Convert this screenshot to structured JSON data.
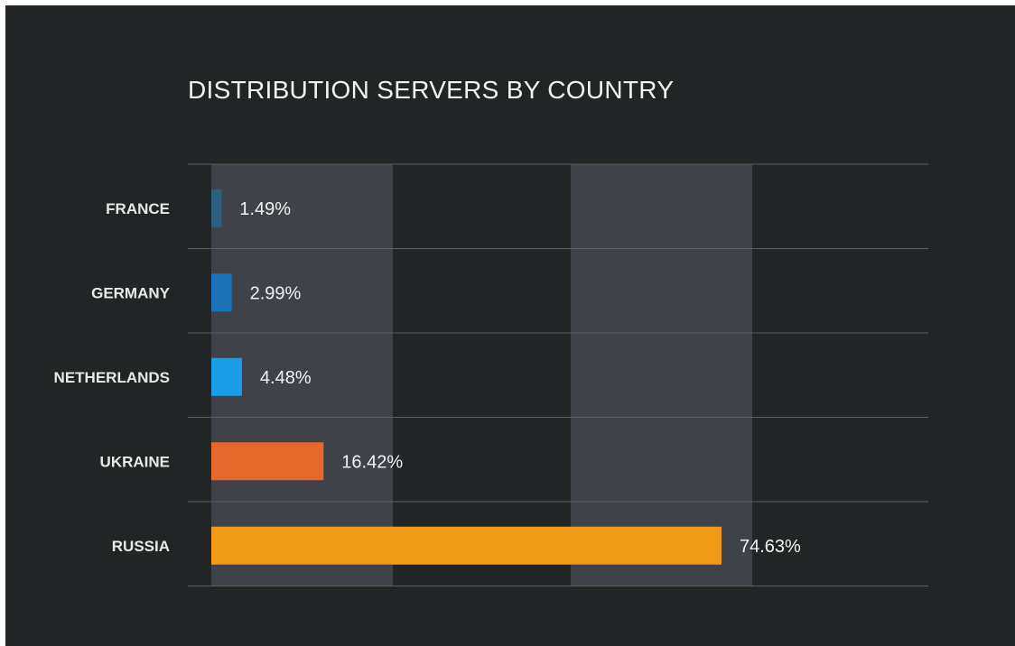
{
  "chart_data": {
    "type": "bar",
    "orientation": "horizontal",
    "title": "DISTRIBUTION SERVERS BY COUNTRY",
    "categories": [
      "FRANCE",
      "GERMANY",
      "NETHERLANDS",
      "UKRAINE",
      "RUSSIA"
    ],
    "values": [
      1.49,
      2.99,
      4.48,
      16.42,
      74.63
    ],
    "value_labels": [
      "1.49%",
      "2.99%",
      "4.48%",
      "16.42%",
      "74.63%"
    ],
    "colors": [
      "#2f5d7c",
      "#1a72b8",
      "#1a9ee8",
      "#e5692a",
      "#f19a1a"
    ],
    "xlim": [
      0,
      100
    ],
    "xlabel": "",
    "ylabel": "",
    "grid": true,
    "legend": "none"
  },
  "theme": {
    "background": "#222526",
    "band": "#3f4249",
    "gridline": "#5a5d62"
  }
}
